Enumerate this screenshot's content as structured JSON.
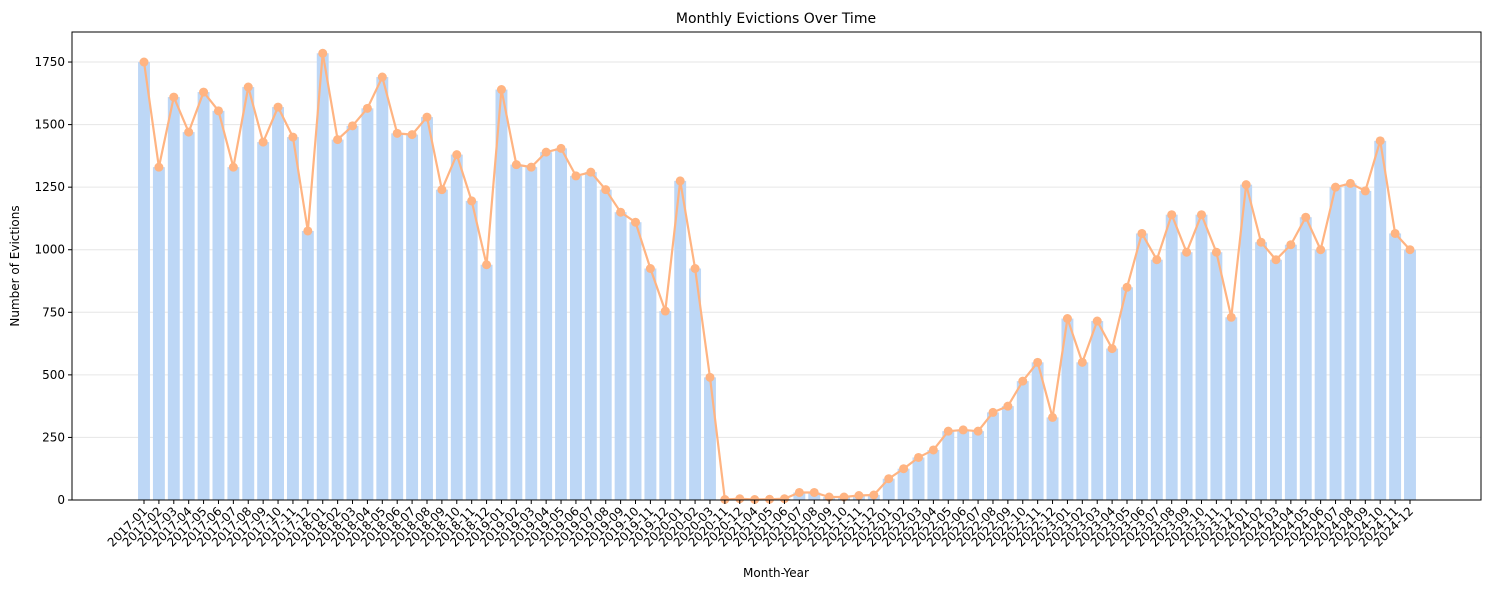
{
  "chart_data": {
    "type": "bar",
    "title": "Monthly Evictions Over Time",
    "xlabel": "Month-Year",
    "ylabel": "Number of Evictions",
    "ylim": [
      0,
      1870
    ],
    "yticks": [
      0,
      250,
      500,
      750,
      1000,
      1250,
      1500,
      1750
    ],
    "grid": "horizontal",
    "colors": {
      "bar": "#bdd7f6",
      "line": "#ffb482",
      "marker": "#ffb482"
    },
    "categories": [
      "2017-01",
      "2017-02",
      "2017-03",
      "2017-04",
      "2017-05",
      "2017-06",
      "2017-07",
      "2017-08",
      "2017-09",
      "2017-10",
      "2017-11",
      "2017-12",
      "2018-01",
      "2018-02",
      "2018-03",
      "2018-04",
      "2018-05",
      "2018-06",
      "2018-07",
      "2018-08",
      "2018-09",
      "2018-10",
      "2018-11",
      "2018-12",
      "2019-01",
      "2019-02",
      "2019-03",
      "2019-04",
      "2019-05",
      "2019-06",
      "2019-07",
      "2019-08",
      "2019-09",
      "2019-10",
      "2019-11",
      "2019-12",
      "2020-01",
      "2020-02",
      "2020-03",
      "2020-11",
      "2020-12",
      "2021-04",
      "2021-05",
      "2021-06",
      "2021-07",
      "2021-08",
      "2021-09",
      "2021-10",
      "2021-11",
      "2021-12",
      "2022-01",
      "2022-02",
      "2022-03",
      "2022-04",
      "2022-05",
      "2022-06",
      "2022-07",
      "2022-08",
      "2022-09",
      "2022-10",
      "2022-11",
      "2022-12",
      "2023-01",
      "2023-02",
      "2023-03",
      "2023-04",
      "2023-05",
      "2023-06",
      "2023-07",
      "2023-08",
      "2023-09",
      "2023-10",
      "2023-11",
      "2023-12",
      "2024-01",
      "2024-02",
      "2024-03",
      "2024-04",
      "2024-05",
      "2024-06",
      "2024-07",
      "2024-08",
      "2024-09",
      "2024-10",
      "2024-11",
      "2024-12"
    ],
    "values": [
      1750,
      1330,
      1610,
      1470,
      1630,
      1555,
      1330,
      1650,
      1430,
      1570,
      1450,
      1075,
      1785,
      1440,
      1495,
      1565,
      1690,
      1465,
      1460,
      1530,
      1240,
      1380,
      1195,
      940,
      1640,
      1340,
      1330,
      1390,
      1405,
      1295,
      1310,
      1240,
      1150,
      1110,
      925,
      755,
      1275,
      925,
      490,
      2,
      5,
      2,
      3,
      5,
      30,
      30,
      12,
      12,
      18,
      20,
      85,
      125,
      170,
      200,
      275,
      280,
      275,
      350,
      375,
      475,
      550,
      330,
      725,
      550,
      715,
      605,
      850,
      1065,
      960,
      1140,
      990,
      1140,
      990,
      730,
      1260,
      1030,
      960,
      1020,
      1130,
      1000,
      1250,
      1265,
      1235,
      1435,
      1065,
      1000
    ]
  }
}
